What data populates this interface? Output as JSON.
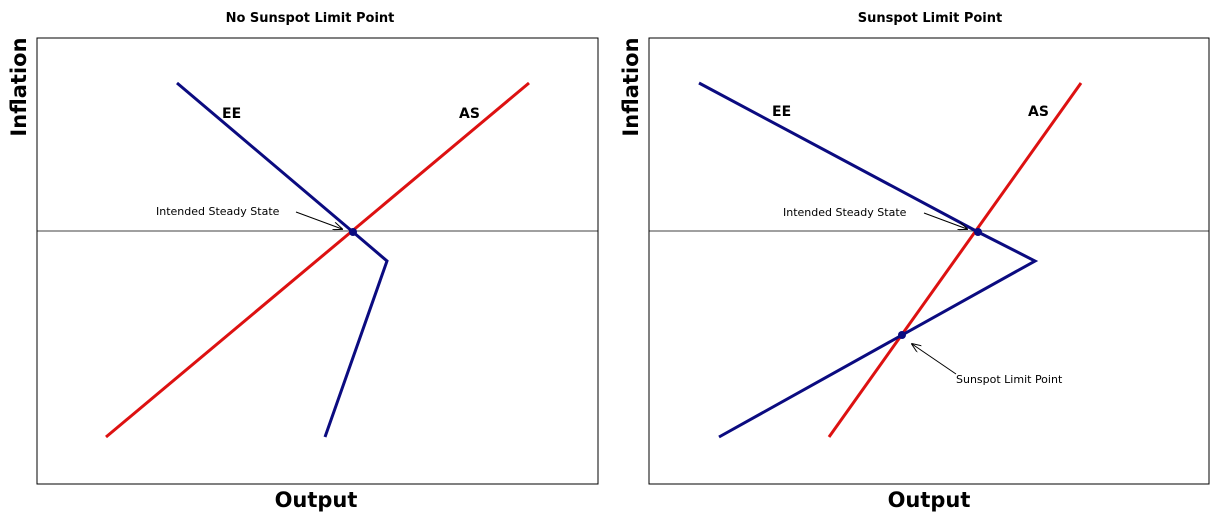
{
  "panels": [
    {
      "title": "No Sunspot Limit Point",
      "ylabel": "Inflation",
      "xlabel": "Output",
      "curves": {
        "ee": "EE",
        "as": "AS"
      },
      "annotations": [
        "Intended Steady State"
      ]
    },
    {
      "title": "Sunspot Limit Point",
      "ylabel": "Inflation",
      "xlabel": "Output",
      "curves": {
        "ee": "EE",
        "as": "AS"
      },
      "annotations": [
        "Intended Steady State",
        "Sunspot Limit Point"
      ]
    }
  ],
  "colors": {
    "ee": "#0b0b80",
    "as": "#dd1111"
  }
}
